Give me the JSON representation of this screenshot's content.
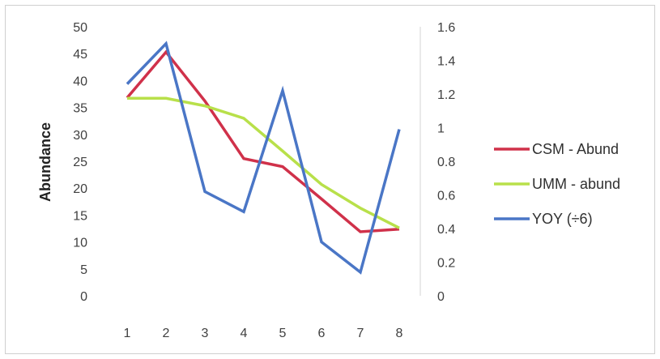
{
  "chart_data": {
    "type": "line",
    "title": "",
    "xlabel": "",
    "ylabel": "Abundance",
    "categories": [
      "1",
      "2",
      "3",
      "4",
      "5",
      "6",
      "7",
      "8"
    ],
    "ylim": [
      0,
      50
    ],
    "yticks": [
      "50",
      "45",
      "40",
      "35",
      "30",
      "25",
      "20",
      "15",
      "10",
      "5",
      "0"
    ],
    "y2lim": [
      0,
      1.6
    ],
    "y2ticks": [
      "1.6",
      "1.4",
      "1.2",
      "1",
      "0.8",
      "0.6",
      "0.4",
      "0.2",
      "0"
    ],
    "grid": false,
    "legend_position": "right",
    "series": [
      {
        "name": "CSM - Abund",
        "axis": "left",
        "color": "#d0314a",
        "values": [
          36.8,
          45.3,
          36.2,
          25.5,
          24.0,
          18.0,
          11.9,
          12.4
        ]
      },
      {
        "name": "UMM - abund",
        "axis": "left",
        "color": "#b8e04a",
        "values": [
          36.7,
          36.7,
          35.3,
          33.0,
          26.9,
          20.7,
          16.3,
          12.6
        ]
      },
      {
        "name": "YOY (÷6)",
        "axis": "right",
        "color": "#4a76c6",
        "values": [
          1.26,
          1.5,
          0.62,
          0.5,
          1.22,
          0.32,
          0.14,
          0.99
        ]
      }
    ]
  }
}
